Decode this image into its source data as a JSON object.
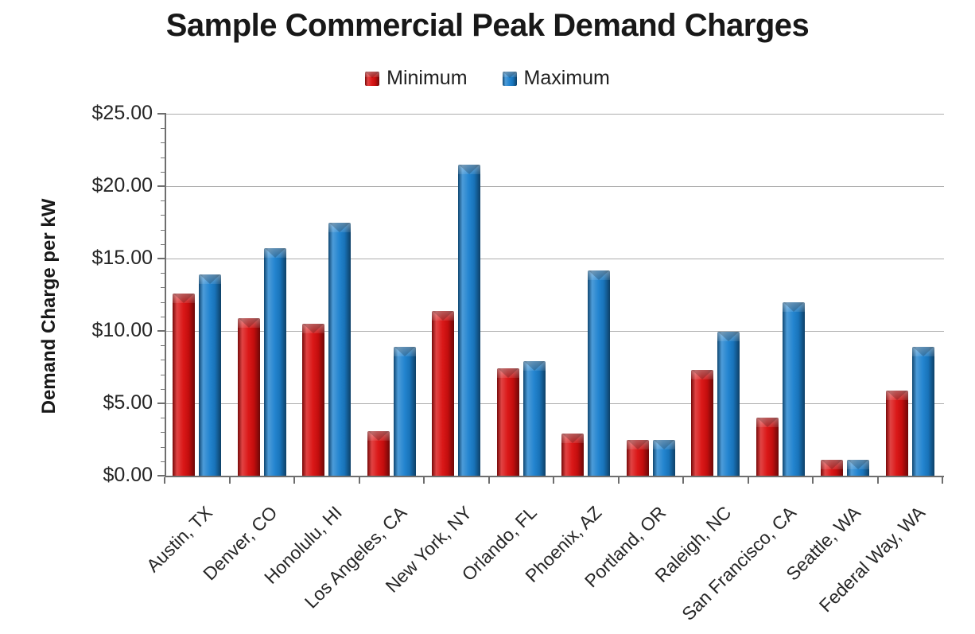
{
  "chart_data": {
    "type": "bar",
    "title": "Sample Commercial Peak Demand Charges",
    "xlabel": "",
    "ylabel": "Demand Charge per kW",
    "ylim": [
      0,
      25
    ],
    "ytick_step": 5,
    "ytick_minor_step": 1,
    "ytick_labels": [
      "$0.00",
      "$5.00",
      "$10.00",
      "$15.00",
      "$20.00",
      "$25.00"
    ],
    "grid": true,
    "legend_position": "top-center",
    "x_label_rotation_deg": 45,
    "categories": [
      "Austin, TX",
      "Denver, CO",
      "Honolulu, HI",
      "Los Angeles, CA",
      "New York, NY",
      "Orlando, FL",
      "Phoenix, AZ",
      "Portland, OR",
      "Raleigh, NC",
      "San Francisco, CA",
      "Seattle, WA",
      "Federal Way, WA"
    ],
    "series": [
      {
        "name": "Minimum",
        "color": "#d90f0f",
        "values": [
          12.6,
          10.9,
          10.5,
          3.1,
          11.4,
          7.4,
          2.9,
          2.5,
          7.3,
          4.0,
          1.1,
          5.9
        ]
      },
      {
        "name": "Maximum",
        "color": "#1b80ce",
        "values": [
          13.9,
          15.7,
          17.5,
          8.9,
          21.5,
          7.9,
          14.2,
          2.45,
          9.95,
          12.0,
          1.1,
          8.9
        ]
      }
    ],
    "colors": {
      "gridline": "#adadad",
      "axis": "#6e6e6e",
      "text": "#262626",
      "title_text": "#181818"
    }
  }
}
